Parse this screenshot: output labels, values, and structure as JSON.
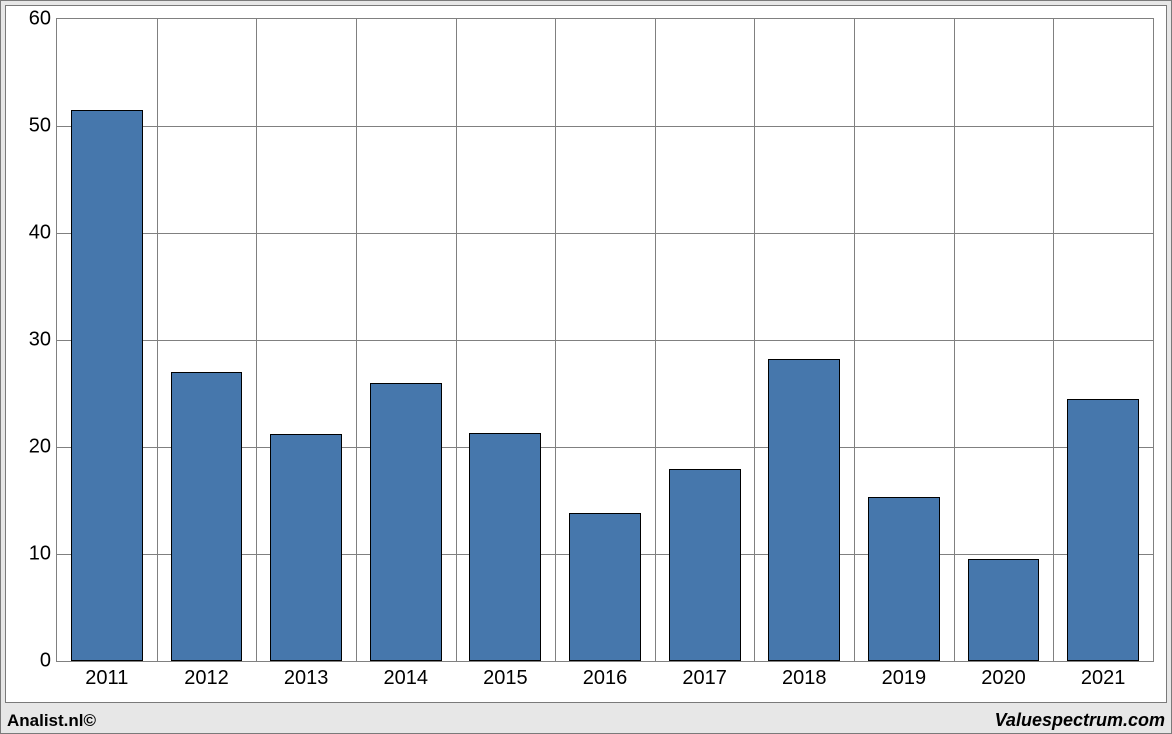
{
  "chart": {
    "type": "bar",
    "categories": [
      "2011",
      "2012",
      "2013",
      "2014",
      "2015",
      "2016",
      "2017",
      "2018",
      "2019",
      "2020",
      "2021"
    ],
    "values": [
      51.5,
      27.0,
      21.2,
      26.0,
      21.3,
      13.8,
      17.9,
      28.2,
      15.3,
      9.5,
      24.5
    ],
    "bar_color": "#4677ac",
    "bar_border_color": "#000000",
    "ylim": [
      0,
      60
    ],
    "ytick_step": 10,
    "yticks": [
      0,
      10,
      20,
      30,
      40,
      50,
      60
    ],
    "background_color": "#ffffff",
    "outer_background_color": "#e7e7e7",
    "grid_color": "#808080",
    "axis_fontsize": 20,
    "axis_font_color": "#000000",
    "bar_width_ratio": 0.72
  },
  "footer": {
    "left_text": "Analist.nl©",
    "right_text": "Valuespectrum.com"
  }
}
